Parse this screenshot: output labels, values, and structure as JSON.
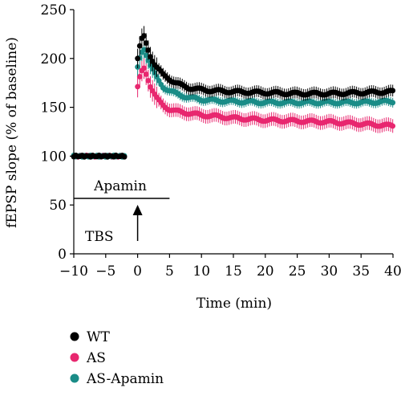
{
  "chart_data": {
    "type": "scatter",
    "xlabel": "Time (min)",
    "ylabel": "fEPSP slope (% of baseline)",
    "xlim": [
      -10,
      40
    ],
    "ylim": [
      0,
      250
    ],
    "xticks": [
      "−10",
      "−5",
      "0",
      "5",
      "10",
      "15",
      "20",
      "25",
      "30",
      "35",
      "40"
    ],
    "yticks": [
      "0",
      "50",
      "100",
      "150",
      "200",
      "250"
    ],
    "grid": false,
    "legend_position": "bottom-left",
    "annotations": {
      "drug_label": "Apamin",
      "drug_bar_x": [
        -10,
        5
      ],
      "stim_label": "TBS",
      "stim_time": 0
    },
    "series": [
      {
        "name": "WT",
        "color": "#000000",
        "baseline": 100,
        "baseline_err": 2,
        "post": [
          [
            0,
            200
          ],
          [
            0.5,
            218
          ],
          [
            1,
            222
          ],
          [
            1.5,
            212
          ],
          [
            2,
            203
          ],
          [
            2.5,
            196
          ],
          [
            3,
            191
          ],
          [
            3.5,
            187
          ],
          [
            4,
            183
          ],
          [
            5,
            179
          ],
          [
            6,
            175
          ],
          [
            7,
            172
          ],
          [
            8,
            170
          ],
          [
            10,
            168
          ],
          [
            12,
            167
          ],
          [
            15,
            166
          ],
          [
            20,
            165
          ],
          [
            25,
            164
          ],
          [
            30,
            164
          ],
          [
            35,
            165
          ],
          [
            40,
            166
          ]
        ],
        "err": 6
      },
      {
        "name": "AS",
        "color": "#e8276f",
        "baseline": 100,
        "baseline_err": 2,
        "post": [
          [
            0,
            170
          ],
          [
            0.5,
            185
          ],
          [
            1,
            190
          ],
          [
            1.5,
            182
          ],
          [
            2,
            172
          ],
          [
            2.5,
            165
          ],
          [
            3,
            159
          ],
          [
            3.5,
            155
          ],
          [
            4,
            152
          ],
          [
            5,
            148
          ],
          [
            6,
            146
          ],
          [
            7,
            145
          ],
          [
            8,
            144
          ],
          [
            10,
            142
          ],
          [
            12,
            141
          ],
          [
            15,
            139
          ],
          [
            20,
            137
          ],
          [
            25,
            136
          ],
          [
            30,
            135
          ],
          [
            35,
            133
          ],
          [
            40,
            131
          ]
        ],
        "err": 7
      },
      {
        "name": "AS-Apamin",
        "color": "#1a8c87",
        "baseline": 100,
        "baseline_err": 2,
        "post": [
          [
            0,
            190
          ],
          [
            0.5,
            205
          ],
          [
            1,
            210
          ],
          [
            1.5,
            202
          ],
          [
            2,
            193
          ],
          [
            2.5,
            186
          ],
          [
            3,
            180
          ],
          [
            3.5,
            175
          ],
          [
            4,
            171
          ],
          [
            5,
            167
          ],
          [
            6,
            164
          ],
          [
            7,
            162
          ],
          [
            8,
            160
          ],
          [
            10,
            158
          ],
          [
            12,
            157
          ],
          [
            15,
            156
          ],
          [
            20,
            155
          ],
          [
            25,
            155
          ],
          [
            30,
            155
          ],
          [
            35,
            155
          ],
          [
            40,
            156
          ]
        ],
        "err": 5
      }
    ]
  }
}
